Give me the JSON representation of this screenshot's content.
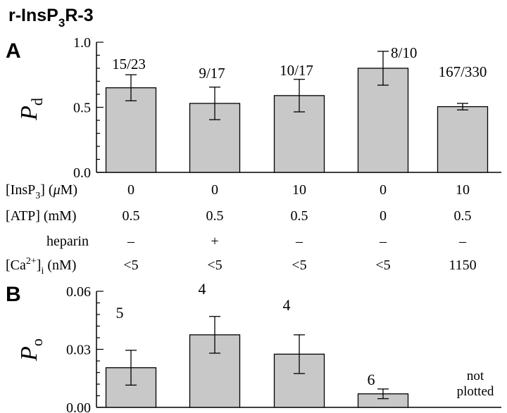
{
  "figure_title": {
    "prefix": "r-InsP",
    "sub": "3",
    "suffix": "R-3"
  },
  "chart_data": [
    {
      "panel": "A",
      "type": "bar",
      "ylabel_main": "P",
      "ylabel_sub": "d",
      "ylim": [
        0,
        1.0
      ],
      "yticks": [
        "0.0",
        "0.5",
        "1.0"
      ],
      "ytick_values": [
        0,
        0.5,
        1.0
      ],
      "values": [
        0.65,
        0.53,
        0.59,
        0.8,
        0.505
      ],
      "errors": [
        0.1,
        0.125,
        0.125,
        0.13,
        0.025
      ],
      "bar_labels": [
        "15/23",
        "9/17",
        "10/17",
        "8/10",
        "167/330"
      ],
      "bar_color": "#c8c8c8"
    },
    {
      "panel": "B",
      "type": "bar",
      "ylabel_main": "P",
      "ylabel_sub": "o",
      "ylim": [
        0,
        0.06
      ],
      "yticks": [
        "0.00",
        "0.03",
        "0.06"
      ],
      "ytick_values": [
        0,
        0.03,
        0.06
      ],
      "values": [
        0.0205,
        0.0375,
        0.0275,
        0.007,
        null
      ],
      "errors": [
        0.009,
        0.0095,
        0.01,
        0.0025,
        null
      ],
      "bar_labels": [
        "5",
        "4",
        "4",
        "6",
        ""
      ],
      "missing_note": [
        "not",
        "plotted"
      ],
      "bar_color": "#c8c8c8"
    }
  ],
  "conditions": [
    {
      "label_parts": [
        "[InsP",
        "3",
        "] (",
        "μ",
        "M)"
      ],
      "values": [
        "0",
        "0",
        "10",
        "0",
        "10"
      ]
    },
    {
      "label_parts": [
        "[ATP] (mM)"
      ],
      "values": [
        "0.5",
        "0.5",
        "0.5",
        "0",
        "0.5"
      ]
    },
    {
      "label_parts": [
        "heparin"
      ],
      "values": [
        "–",
        "+",
        "–",
        "–",
        "–"
      ]
    },
    {
      "label_parts": [
        "[Ca",
        "2+",
        "]",
        "i",
        " (nM)"
      ],
      "values": [
        "<5",
        "<5",
        "<5",
        "<5",
        "1150"
      ]
    }
  ]
}
